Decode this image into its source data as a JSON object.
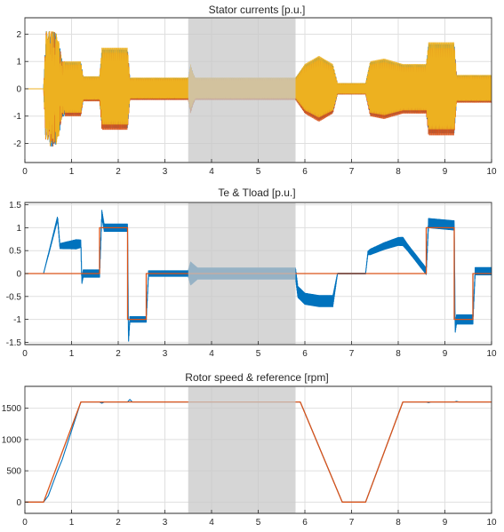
{
  "figure": {
    "colors": {
      "background": "#ffffff",
      "grid": "#dfdfdf",
      "axis": "#262626",
      "shade": "#c8c8c8",
      "phase_a": "#0072bd",
      "phase_b": "#d95319",
      "phase_c": "#edb120"
    }
  },
  "chart_data": [
    {
      "type": "line",
      "title": "Stator currents [p.u.]",
      "xlim": [
        0,
        10
      ],
      "ylim": [
        -2.7,
        2.6
      ],
      "xticks": [
        0,
        1,
        2,
        3,
        4,
        5,
        6,
        7,
        8,
        9,
        10
      ],
      "yticks": [
        -2,
        -1,
        0,
        1,
        2
      ],
      "grid": true,
      "shaded_region": [
        3.5,
        5.8
      ],
      "series": [
        {
          "color": "#0072bd",
          "role": "phase-a"
        },
        {
          "color": "#d95319",
          "role": "phase-b"
        },
        {
          "color": "#edb120",
          "role": "phase-c"
        }
      ],
      "envelope": {
        "x": [
          0,
          0.4,
          0.45,
          0.5,
          0.6,
          0.7,
          0.8,
          1.2,
          1.25,
          1.6,
          1.65,
          2.2,
          2.25,
          3.5,
          3.55,
          3.6,
          3.65,
          3.7,
          5.8,
          6.0,
          6.3,
          6.6,
          6.7,
          7.3,
          7.4,
          7.7,
          8.1,
          8.6,
          8.65,
          9.2,
          9.25,
          10
        ],
        "amp": [
          0,
          0,
          2.1,
          2.1,
          2.1,
          2.0,
          1.0,
          1.0,
          0.45,
          0.45,
          1.5,
          1.5,
          0.4,
          0.4,
          0.9,
          0.6,
          0.4,
          0.4,
          0.4,
          0.9,
          1.2,
          0.9,
          0.2,
          0.2,
          1.0,
          1.1,
          0.9,
          0.9,
          1.7,
          1.7,
          0.5,
          0.5
        ]
      }
    },
    {
      "type": "line",
      "title": "Te & Tload [p.u.]",
      "xlim": [
        0,
        10
      ],
      "ylim": [
        -1.55,
        1.55
      ],
      "xticks": [
        0,
        1,
        2,
        3,
        4,
        5,
        6,
        7,
        8,
        9,
        10
      ],
      "yticks": [
        -1.5,
        -1,
        -0.5,
        0,
        0.5,
        1,
        1.5
      ],
      "grid": true,
      "shaded_region": [
        3.5,
        5.8
      ],
      "series": [
        {
          "color": "#0072bd",
          "role": "Te",
          "x": [
            0,
            0.4,
            0.7,
            0.75,
            1.2,
            1.22,
            1.25,
            1.6,
            1.65,
            1.7,
            2.2,
            2.22,
            2.25,
            2.6,
            2.65,
            3.5,
            5.8,
            5.85,
            6.0,
            6.3,
            6.6,
            6.7,
            7.3,
            7.35,
            7.7,
            8.0,
            8.1,
            8.6,
            8.65,
            9.2,
            9.22,
            9.25,
            9.6,
            9.65,
            10
          ],
          "y": [
            0,
            0,
            1.2,
            0.6,
            0.65,
            -0.15,
            0,
            0,
            1.3,
            1.0,
            1.0,
            -1.45,
            -1.0,
            -1.0,
            0,
            0,
            0,
            -0.4,
            -0.55,
            -0.6,
            -0.6,
            0,
            0,
            0.45,
            0.6,
            0.7,
            0.7,
            0.05,
            1.1,
            1.05,
            -1.2,
            -1.0,
            -1.0,
            0.05,
            0.05
          ],
          "ripple_x": [
            0,
            0.4,
            0.5,
            1.1,
            1.2,
            1.6,
            1.65,
            2.2,
            2.25,
            2.6,
            2.65,
            3.5,
            3.55,
            3.7,
            3.75,
            5.8,
            5.85,
            6.6,
            6.7,
            7.3,
            7.4,
            8.1,
            8.2,
            8.6,
            8.65,
            9.2,
            9.25,
            9.6,
            9.65,
            10
          ],
          "ripple_amp": [
            0,
            0,
            0.02,
            0.1,
            0.08,
            0.08,
            0.08,
            0.08,
            0.06,
            0.06,
            0.06,
            0.06,
            0.25,
            0.12,
            0.12,
            0.12,
            0.12,
            0.12,
            0.01,
            0.01,
            0.06,
            0.09,
            0.07,
            0.07,
            0.1,
            0.1,
            0.1,
            0.1,
            0.08,
            0.08
          ]
        },
        {
          "color": "#d95319",
          "role": "Tload",
          "x": [
            0,
            1.6,
            1.6,
            2.2,
            2.2,
            2.6,
            2.6,
            8.6,
            8.6,
            9.2,
            9.2,
            9.6,
            9.6,
            10
          ],
          "y": [
            0,
            0,
            1,
            1,
            -1,
            -1,
            0,
            0,
            1,
            1,
            -1,
            -1,
            0,
            0
          ]
        }
      ]
    },
    {
      "type": "line",
      "title": "Rotor speed & reference [rpm]",
      "xlim": [
        0,
        10
      ],
      "ylim": [
        -180,
        1850
      ],
      "xticks": [
        0,
        1,
        2,
        3,
        4,
        5,
        6,
        7,
        8,
        9,
        10
      ],
      "yticks": [
        0,
        500,
        1000,
        1500
      ],
      "grid": true,
      "shaded_region": [
        3.5,
        5.8
      ],
      "series": [
        {
          "color": "#0072bd",
          "role": "rotor-speed",
          "x": [
            0,
            0.4,
            0.5,
            0.6,
            0.7,
            0.8,
            1.2,
            1.6,
            1.65,
            1.7,
            2.2,
            2.25,
            2.3,
            5.9,
            6.8,
            7.3,
            8.1,
            8.6,
            8.65,
            8.7,
            9.2,
            9.25,
            9.3,
            10
          ],
          "y": [
            0,
            0,
            100,
            300,
            500,
            680,
            1600,
            1600,
            1580,
            1600,
            1600,
            1640,
            1600,
            1600,
            0,
            0,
            1600,
            1600,
            1590,
            1600,
            1600,
            1610,
            1600,
            1600
          ]
        },
        {
          "color": "#d95319",
          "role": "reference",
          "x": [
            0,
            0.4,
            1.2,
            5.9,
            6.8,
            7.3,
            8.1,
            10
          ],
          "y": [
            0,
            0,
            1600,
            1600,
            0,
            0,
            1600,
            1600
          ]
        }
      ]
    }
  ]
}
